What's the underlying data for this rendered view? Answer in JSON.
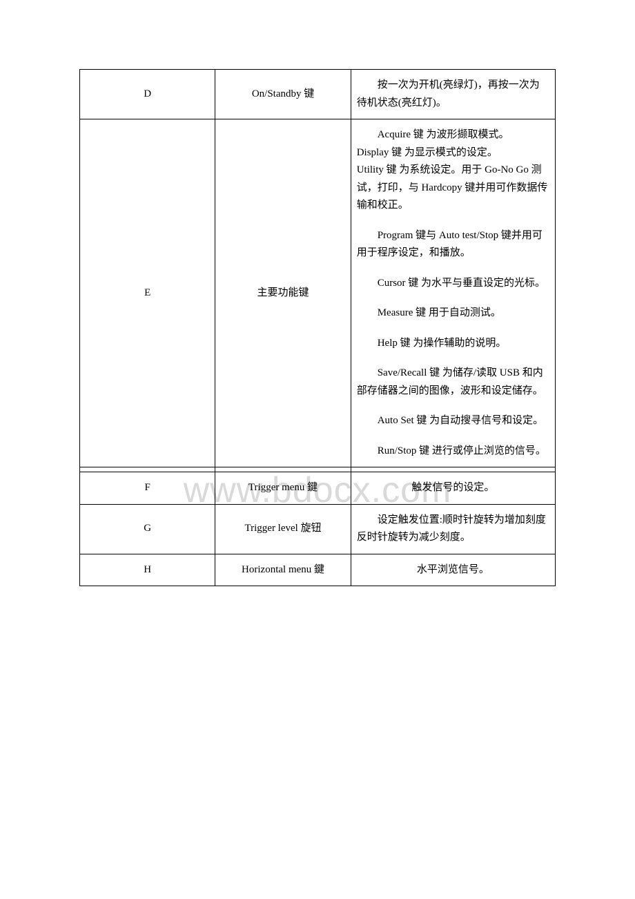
{
  "watermark": "www.bdocx.com",
  "table": {
    "columns": {
      "a_width_pct": 28.5,
      "b_width_pct": 28.5,
      "c_width_pct": 43
    },
    "border_color": "#000000",
    "font_family": "Times New Roman / SimSun",
    "font_size_pt": 11,
    "line_height": 1.7,
    "rows": [
      {
        "id": "D",
        "label": "On/Standby 键",
        "desc": [
          "　　按一次为开机(亮绿灯)，再按一次为待机状态(亮红灯)。"
        ]
      },
      {
        "id": "E",
        "label": "主要功能键",
        "desc_blocks": [
          "　　Acquire 键 为波形撷取模式。\nDisplay 键 为显示模式的设定。\nUtility 键 为系统设定。用于 Go-No Go 测试，打印，与 Hardcopy 键并用可作数据传输和校正。",
          "　　Program 键与 Auto test/Stop 键并用可用于程序设定，和播放。",
          "　　Cursor 键 为水平与垂直设定的光标。",
          "　　Measure 键 用于自动测试。",
          "　　Help 键 为操作辅助的说明。",
          "　　Save/Recall 键 为储存/读取 USB 和内部存储器之间的图像，波形和设定储存。",
          "　　Auto Set 键 为自动搜寻信号和设定。",
          "　　Run/Stop 键 进行或停止浏览的信号。"
        ]
      },
      {
        "spacer": true
      },
      {
        "id": "F",
        "label": "Trigger menu 鍵",
        "desc": [
          "触发信号的设定。"
        ],
        "desc_align": "center"
      },
      {
        "id": "G",
        "label": "Trigger level 旋钮",
        "desc": [
          "　　设定触发位置:顺时针旋转为增加刻度反时针旋转为减少刻度。"
        ]
      },
      {
        "id": "H",
        "label": "Horizontal menu 鍵",
        "desc": [
          "水平浏览信号。"
        ],
        "desc_align": "center"
      }
    ]
  }
}
